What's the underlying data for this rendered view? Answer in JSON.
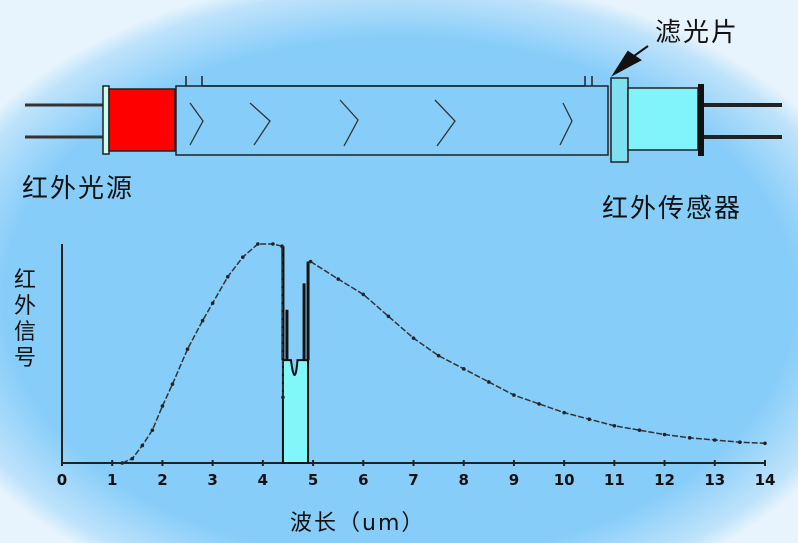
{
  "labels": {
    "filter": "滤光片",
    "ir_source": "红外光源",
    "ir_sensor": "红外传感器"
  },
  "colors": {
    "background": "#87cdf9",
    "source": "#ff0000",
    "sensor": "#80f4fa",
    "filter": "#7fe0f0",
    "absorption": "#80f8fa"
  },
  "chart_data": {
    "type": "line",
    "xlabel": "波长（um）",
    "ylabel": "红外信号",
    "xlim": [
      0,
      14
    ],
    "ylim": [
      0,
      100
    ],
    "x_ticks": [
      "0",
      "1",
      "2",
      "3",
      "4",
      "5",
      "6",
      "7",
      "8",
      "9",
      "10",
      "11",
      "12",
      "13",
      "14"
    ],
    "series": [
      {
        "points": [
          [
            1.2,
            0
          ],
          [
            1.4,
            2
          ],
          [
            1.6,
            8
          ],
          [
            1.8,
            15
          ],
          [
            2,
            26
          ],
          [
            2.2,
            36
          ],
          [
            2.5,
            52
          ],
          [
            2.8,
            65
          ],
          [
            3,
            73
          ],
          [
            3.3,
            85
          ],
          [
            3.6,
            94
          ],
          [
            3.9,
            100
          ],
          [
            4.2,
            100
          ],
          [
            4.38,
            99
          ],
          [
            4.4,
            30
          ]
        ]
      },
      {
        "points": [
          [
            4.95,
            92
          ],
          [
            5.5,
            84
          ],
          [
            6,
            77
          ],
          [
            6.5,
            67
          ],
          [
            7,
            57
          ],
          [
            7.5,
            49
          ],
          [
            8,
            43
          ],
          [
            8.5,
            37
          ],
          [
            9,
            31
          ],
          [
            9.5,
            27
          ],
          [
            10,
            23
          ],
          [
            10.5,
            20
          ],
          [
            11,
            17
          ],
          [
            11.5,
            15
          ],
          [
            12,
            13
          ],
          [
            12.5,
            11.5
          ],
          [
            13,
            10.5
          ],
          [
            13.5,
            9.5
          ],
          [
            14,
            9
          ]
        ]
      }
    ],
    "absorption_band": {
      "from": 4.4,
      "to": 4.9,
      "level": 47
    }
  }
}
